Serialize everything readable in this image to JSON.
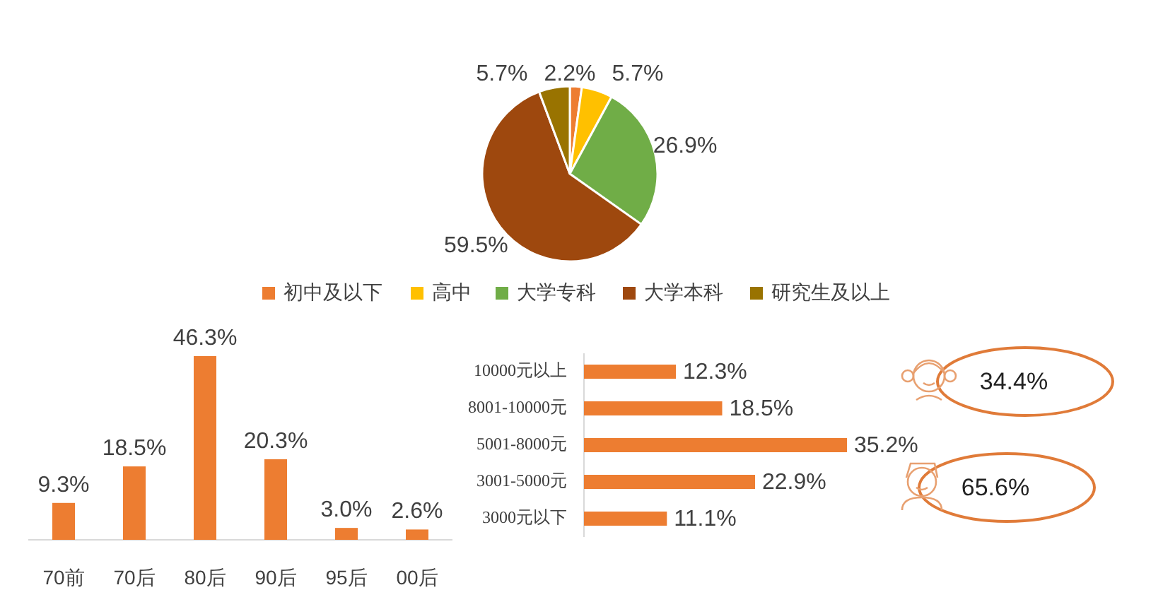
{
  "chart_data": [
    {
      "type": "pie",
      "categories": [
        "初中及以下",
        "高中",
        "大学专科",
        "大学本科",
        "研究生及以上"
      ],
      "values": [
        2.2,
        5.7,
        26.9,
        59.5,
        5.7
      ],
      "colors": [
        "#ed7d31",
        "#ffc000",
        "#70ad47",
        "#9e480e",
        "#997300"
      ],
      "value_labels": [
        "2.2%",
        "5.7%",
        "26.9%",
        "59.5%",
        "5.7%"
      ],
      "legend": "bottom"
    },
    {
      "type": "bar",
      "categories": [
        "70前",
        "70后",
        "80后",
        "90后",
        "95后",
        "00后"
      ],
      "values": [
        9.3,
        18.5,
        46.3,
        20.3,
        3.0,
        2.6
      ],
      "value_labels": [
        "9.3%",
        "18.5%",
        "46.3%",
        "20.3%",
        "3.0%",
        "2.6%"
      ],
      "color": "#ed7d31"
    },
    {
      "type": "bar",
      "orientation": "horizontal",
      "categories": [
        "10000元以上",
        "8001-10000元",
        "5001-8000元",
        "3001-5000元",
        "3000元以下"
      ],
      "values": [
        12.3,
        18.5,
        35.2,
        22.9,
        11.1
      ],
      "value_labels": [
        "12.3%",
        "18.5%",
        "35.2%",
        "22.9%",
        "11.1%"
      ],
      "color": "#ed7d31"
    },
    {
      "type": "other",
      "categories": [
        null,
        null
      ],
      "values": [
        34.4,
        65.6
      ],
      "value_labels": [
        "34.4%",
        "65.6%"
      ],
      "color": "#e07b39"
    }
  ]
}
